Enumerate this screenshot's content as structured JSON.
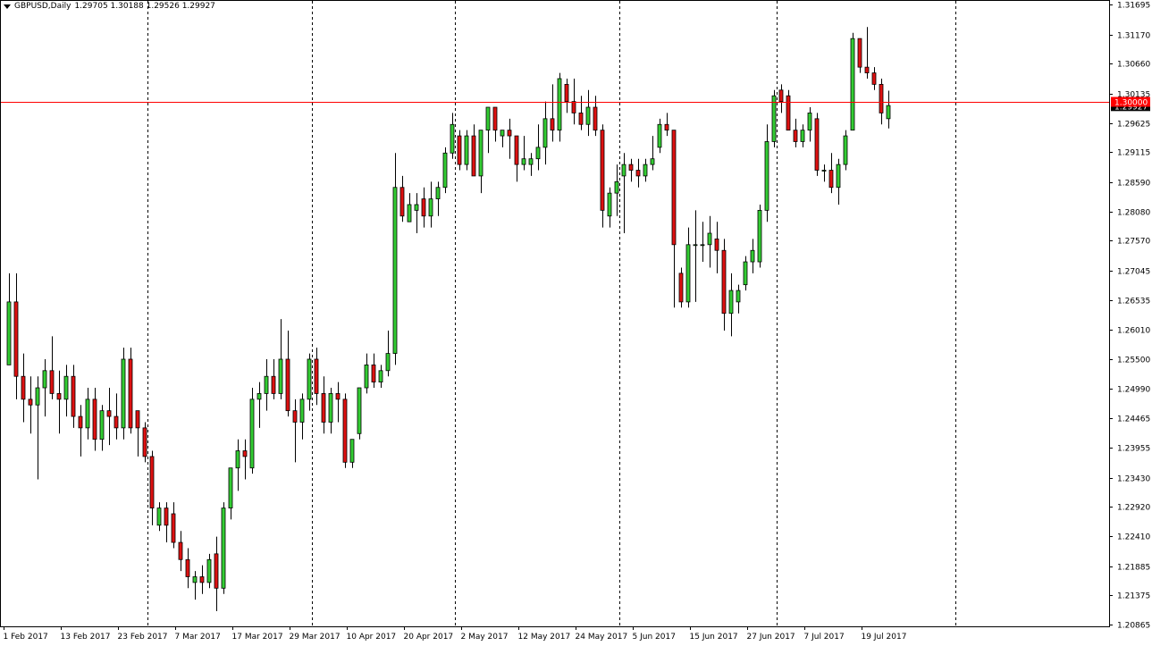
{
  "header": {
    "symbol": "GBPUSD,Daily",
    "ohlc": "1.29705 1.30188 1.29526 1.29927"
  },
  "colors": {
    "bull": "#33cc33",
    "bear": "#dd1111",
    "level_line": "#ff0000",
    "level_label_bg": "#ff0000",
    "current_label_bg": "#000000",
    "grid": "#000000"
  },
  "chart_data": {
    "type": "candlestick",
    "title": "GBPUSD,Daily",
    "price_axis_position": "right",
    "price_ticks": [
      1.31695,
      1.3117,
      1.3066,
      1.30135,
      1.29625,
      1.29115,
      1.2859,
      1.2808,
      1.2757,
      1.27045,
      1.26535,
      1.2601,
      1.255,
      1.2499,
      1.24465,
      1.23955,
      1.2343,
      1.2292,
      1.2241,
      1.21885,
      1.21375,
      1.20865
    ],
    "price_tick_labels": [
      "1.31695",
      "1.31170",
      "1.30660",
      "1.30135",
      "1.29625",
      "1.29115",
      "1.28590",
      "1.28080",
      "1.27570",
      "1.27045",
      "1.26535",
      "1.26010",
      "1.25500",
      "1.24990",
      "1.24465",
      "1.23955",
      "1.23430",
      "1.22920",
      "1.22410",
      "1.21885",
      "1.21375",
      "1.20865"
    ],
    "ylim": [
      1.20865,
      1.31695
    ],
    "date_labels": [
      "1 Feb 2017",
      "13 Feb 2017",
      "23 Feb 2017",
      "7 Mar 2017",
      "17 Mar 2017",
      "29 Mar 2017",
      "10 Apr 2017",
      "20 Apr 2017",
      "2 May 2017",
      "12 May 2017",
      "24 May 2017",
      "5 Jun 2017",
      "15 Jun 2017",
      "27 Jun 2017",
      "7 Jul 2017",
      "19 Jul 2017"
    ],
    "date_label_bars": [
      0,
      8,
      16,
      24,
      32,
      40,
      48,
      56,
      64,
      72,
      80,
      88,
      96,
      104,
      112,
      120
    ],
    "period_separator_bars": [
      20,
      43,
      63,
      86,
      108,
      133
    ],
    "horizontal_level": {
      "value": 1.3,
      "label": "1.30000"
    },
    "current_price": {
      "value": 1.29927,
      "label": "1.29927"
    },
    "candles": [
      {
        "o": 1.254,
        "h": 1.27,
        "l": 1.254,
        "c": 1.265
      },
      {
        "o": 1.265,
        "h": 1.27,
        "l": 1.248,
        "c": 1.252
      },
      {
        "o": 1.252,
        "h": 1.256,
        "l": 1.244,
        "c": 1.248
      },
      {
        "o": 1.248,
        "h": 1.252,
        "l": 1.242,
        "c": 1.247
      },
      {
        "o": 1.247,
        "h": 1.252,
        "l": 1.234,
        "c": 1.25
      },
      {
        "o": 1.25,
        "h": 1.255,
        "l": 1.245,
        "c": 1.253
      },
      {
        "o": 1.253,
        "h": 1.259,
        "l": 1.248,
        "c": 1.249
      },
      {
        "o": 1.249,
        "h": 1.253,
        "l": 1.242,
        "c": 1.248
      },
      {
        "o": 1.248,
        "h": 1.254,
        "l": 1.245,
        "c": 1.252
      },
      {
        "o": 1.252,
        "h": 1.254,
        "l": 1.243,
        "c": 1.245
      },
      {
        "o": 1.245,
        "h": 1.247,
        "l": 1.238,
        "c": 1.243
      },
      {
        "o": 1.243,
        "h": 1.25,
        "l": 1.241,
        "c": 1.248
      },
      {
        "o": 1.248,
        "h": 1.25,
        "l": 1.239,
        "c": 1.241
      },
      {
        "o": 1.241,
        "h": 1.247,
        "l": 1.239,
        "c": 1.246
      },
      {
        "o": 1.246,
        "h": 1.25,
        "l": 1.24,
        "c": 1.245
      },
      {
        "o": 1.245,
        "h": 1.249,
        "l": 1.241,
        "c": 1.243
      },
      {
        "o": 1.243,
        "h": 1.257,
        "l": 1.241,
        "c": 1.255
      },
      {
        "o": 1.255,
        "h": 1.257,
        "l": 1.242,
        "c": 1.243
      },
      {
        "o": 1.246,
        "h": 1.246,
        "l": 1.238,
        "c": 1.243
      },
      {
        "o": 1.243,
        "h": 1.244,
        "l": 1.237,
        "c": 1.238
      },
      {
        "o": 1.238,
        "h": 1.239,
        "l": 1.226,
        "c": 1.229
      },
      {
        "o": 1.226,
        "h": 1.23,
        "l": 1.225,
        "c": 1.229
      },
      {
        "o": 1.229,
        "h": 1.23,
        "l": 1.223,
        "c": 1.226
      },
      {
        "o": 1.228,
        "h": 1.23,
        "l": 1.222,
        "c": 1.223
      },
      {
        "o": 1.223,
        "h": 1.225,
        "l": 1.218,
        "c": 1.22
      },
      {
        "o": 1.22,
        "h": 1.222,
        "l": 1.215,
        "c": 1.217
      },
      {
        "o": 1.216,
        "h": 1.218,
        "l": 1.213,
        "c": 1.217
      },
      {
        "o": 1.217,
        "h": 1.219,
        "l": 1.214,
        "c": 1.216
      },
      {
        "o": 1.216,
        "h": 1.221,
        "l": 1.215,
        "c": 1.22
      },
      {
        "o": 1.221,
        "h": 1.224,
        "l": 1.211,
        "c": 1.215
      },
      {
        "o": 1.215,
        "h": 1.23,
        "l": 1.214,
        "c": 1.229
      },
      {
        "o": 1.229,
        "h": 1.236,
        "l": 1.227,
        "c": 1.236
      },
      {
        "o": 1.236,
        "h": 1.241,
        "l": 1.232,
        "c": 1.239
      },
      {
        "o": 1.239,
        "h": 1.241,
        "l": 1.234,
        "c": 1.238
      },
      {
        "o": 1.236,
        "h": 1.25,
        "l": 1.235,
        "c": 1.248
      },
      {
        "o": 1.248,
        "h": 1.251,
        "l": 1.243,
        "c": 1.249
      },
      {
        "o": 1.249,
        "h": 1.255,
        "l": 1.246,
        "c": 1.252
      },
      {
        "o": 1.252,
        "h": 1.255,
        "l": 1.248,
        "c": 1.249
      },
      {
        "o": 1.249,
        "h": 1.262,
        "l": 1.248,
        "c": 1.255
      },
      {
        "o": 1.255,
        "h": 1.26,
        "l": 1.245,
        "c": 1.246
      },
      {
        "o": 1.246,
        "h": 1.248,
        "l": 1.237,
        "c": 1.244
      },
      {
        "o": 1.244,
        "h": 1.249,
        "l": 1.241,
        "c": 1.248
      },
      {
        "o": 1.248,
        "h": 1.256,
        "l": 1.246,
        "c": 1.255
      },
      {
        "o": 1.255,
        "h": 1.257,
        "l": 1.247,
        "c": 1.249
      },
      {
        "o": 1.249,
        "h": 1.252,
        "l": 1.242,
        "c": 1.244
      },
      {
        "o": 1.244,
        "h": 1.25,
        "l": 1.242,
        "c": 1.249
      },
      {
        "o": 1.249,
        "h": 1.251,
        "l": 1.244,
        "c": 1.248
      },
      {
        "o": 1.248,
        "h": 1.249,
        "l": 1.236,
        "c": 1.237
      },
      {
        "o": 1.237,
        "h": 1.241,
        "l": 1.236,
        "c": 1.241
      },
      {
        "o": 1.242,
        "h": 1.25,
        "l": 1.241,
        "c": 1.25
      },
      {
        "o": 1.25,
        "h": 1.256,
        "l": 1.249,
        "c": 1.254
      },
      {
        "o": 1.254,
        "h": 1.256,
        "l": 1.25,
        "c": 1.251
      },
      {
        "o": 1.251,
        "h": 1.254,
        "l": 1.25,
        "c": 1.253
      },
      {
        "o": 1.253,
        "h": 1.26,
        "l": 1.252,
        "c": 1.256
      },
      {
        "o": 1.256,
        "h": 1.291,
        "l": 1.254,
        "c": 1.285
      },
      {
        "o": 1.285,
        "h": 1.287,
        "l": 1.279,
        "c": 1.28
      },
      {
        "o": 1.279,
        "h": 1.284,
        "l": 1.279,
        "c": 1.282
      },
      {
        "o": 1.281,
        "h": 1.284,
        "l": 1.277,
        "c": 1.282
      },
      {
        "o": 1.283,
        "h": 1.285,
        "l": 1.278,
        "c": 1.28
      },
      {
        "o": 1.28,
        "h": 1.286,
        "l": 1.278,
        "c": 1.283
      },
      {
        "o": 1.283,
        "h": 1.286,
        "l": 1.28,
        "c": 1.285
      },
      {
        "o": 1.285,
        "h": 1.292,
        "l": 1.284,
        "c": 1.291
      },
      {
        "o": 1.291,
        "h": 1.298,
        "l": 1.29,
        "c": 1.296
      },
      {
        "o": 1.294,
        "h": 1.295,
        "l": 1.288,
        "c": 1.289
      },
      {
        "o": 1.289,
        "h": 1.295,
        "l": 1.288,
        "c": 1.294
      },
      {
        "o": 1.294,
        "h": 1.296,
        "l": 1.287,
        "c": 1.287
      },
      {
        "o": 1.287,
        "h": 1.295,
        "l": 1.284,
        "c": 1.295
      },
      {
        "o": 1.295,
        "h": 1.299,
        "l": 1.291,
        "c": 1.299
      },
      {
        "o": 1.299,
        "h": 1.299,
        "l": 1.293,
        "c": 1.295
      },
      {
        "o": 1.294,
        "h": 1.295,
        "l": 1.292,
        "c": 1.295
      },
      {
        "o": 1.295,
        "h": 1.297,
        "l": 1.29,
        "c": 1.294
      },
      {
        "o": 1.294,
        "h": 1.294,
        "l": 1.286,
        "c": 1.289
      },
      {
        "o": 1.289,
        "h": 1.294,
        "l": 1.288,
        "c": 1.29
      },
      {
        "o": 1.289,
        "h": 1.291,
        "l": 1.287,
        "c": 1.29
      },
      {
        "o": 1.29,
        "h": 1.296,
        "l": 1.288,
        "c": 1.292
      },
      {
        "o": 1.292,
        "h": 1.3,
        "l": 1.289,
        "c": 1.297
      },
      {
        "o": 1.297,
        "h": 1.303,
        "l": 1.293,
        "c": 1.295
      },
      {
        "o": 1.295,
        "h": 1.305,
        "l": 1.293,
        "c": 1.304
      },
      {
        "o": 1.303,
        "h": 1.304,
        "l": 1.298,
        "c": 1.3
      },
      {
        "o": 1.3,
        "h": 1.304,
        "l": 1.296,
        "c": 1.298
      },
      {
        "o": 1.298,
        "h": 1.301,
        "l": 1.295,
        "c": 1.296
      },
      {
        "o": 1.296,
        "h": 1.302,
        "l": 1.294,
        "c": 1.299
      },
      {
        "o": 1.299,
        "h": 1.301,
        "l": 1.294,
        "c": 1.295
      },
      {
        "o": 1.295,
        "h": 1.296,
        "l": 1.278,
        "c": 1.281
      },
      {
        "o": 1.28,
        "h": 1.285,
        "l": 1.278,
        "c": 1.284
      },
      {
        "o": 1.284,
        "h": 1.289,
        "l": 1.28,
        "c": 1.286
      },
      {
        "o": 1.287,
        "h": 1.291,
        "l": 1.277,
        "c": 1.289
      },
      {
        "o": 1.289,
        "h": 1.29,
        "l": 1.286,
        "c": 1.288
      },
      {
        "o": 1.288,
        "h": 1.29,
        "l": 1.285,
        "c": 1.287
      },
      {
        "o": 1.287,
        "h": 1.29,
        "l": 1.286,
        "c": 1.289
      },
      {
        "o": 1.289,
        "h": 1.294,
        "l": 1.288,
        "c": 1.29
      },
      {
        "o": 1.292,
        "h": 1.297,
        "l": 1.291,
        "c": 1.296
      },
      {
        "o": 1.296,
        "h": 1.298,
        "l": 1.294,
        "c": 1.295
      },
      {
        "o": 1.295,
        "h": 1.295,
        "l": 1.264,
        "c": 1.275
      },
      {
        "o": 1.27,
        "h": 1.271,
        "l": 1.264,
        "c": 1.265
      },
      {
        "o": 1.265,
        "h": 1.278,
        "l": 1.264,
        "c": 1.275
      },
      {
        "o": 1.275,
        "h": 1.281,
        "l": 1.265,
        "c": 1.275
      },
      {
        "o": 1.275,
        "h": 1.279,
        "l": 1.272,
        "c": 1.275
      },
      {
        "o": 1.275,
        "h": 1.28,
        "l": 1.271,
        "c": 1.277
      },
      {
        "o": 1.276,
        "h": 1.279,
        "l": 1.27,
        "c": 1.274
      },
      {
        "o": 1.274,
        "h": 1.276,
        "l": 1.26,
        "c": 1.263
      },
      {
        "o": 1.263,
        "h": 1.27,
        "l": 1.259,
        "c": 1.267
      },
      {
        "o": 1.265,
        "h": 1.268,
        "l": 1.263,
        "c": 1.267
      },
      {
        "o": 1.268,
        "h": 1.273,
        "l": 1.267,
        "c": 1.272
      },
      {
        "o": 1.272,
        "h": 1.276,
        "l": 1.27,
        "c": 1.274
      },
      {
        "o": 1.272,
        "h": 1.282,
        "l": 1.271,
        "c": 1.281
      },
      {
        "o": 1.281,
        "h": 1.296,
        "l": 1.279,
        "c": 1.293
      },
      {
        "o": 1.293,
        "h": 1.302,
        "l": 1.292,
        "c": 1.301
      },
      {
        "o": 1.302,
        "h": 1.303,
        "l": 1.298,
        "c": 1.3
      },
      {
        "o": 1.301,
        "h": 1.302,
        "l": 1.295,
        "c": 1.295
      },
      {
        "o": 1.295,
        "h": 1.297,
        "l": 1.292,
        "c": 1.293
      },
      {
        "o": 1.293,
        "h": 1.296,
        "l": 1.292,
        "c": 1.295
      },
      {
        "o": 1.295,
        "h": 1.299,
        "l": 1.293,
        "c": 1.298
      },
      {
        "o": 1.297,
        "h": 1.298,
        "l": 1.287,
        "c": 1.288
      },
      {
        "o": 1.288,
        "h": 1.289,
        "l": 1.286,
        "c": 1.288
      },
      {
        "o": 1.288,
        "h": 1.291,
        "l": 1.284,
        "c": 1.285
      },
      {
        "o": 1.285,
        "h": 1.29,
        "l": 1.282,
        "c": 1.289
      },
      {
        "o": 1.289,
        "h": 1.295,
        "l": 1.288,
        "c": 1.294
      },
      {
        "o": 1.295,
        "h": 1.312,
        "l": 1.295,
        "c": 1.311
      },
      {
        "o": 1.311,
        "h": 1.311,
        "l": 1.305,
        "c": 1.306
      },
      {
        "o": 1.306,
        "h": 1.313,
        "l": 1.304,
        "c": 1.305
      },
      {
        "o": 1.305,
        "h": 1.306,
        "l": 1.302,
        "c": 1.303
      },
      {
        "o": 1.303,
        "h": 1.304,
        "l": 1.296,
        "c": 1.298
      },
      {
        "o": 1.297,
        "h": 1.3019,
        "l": 1.2953,
        "c": 1.2993
      }
    ]
  }
}
